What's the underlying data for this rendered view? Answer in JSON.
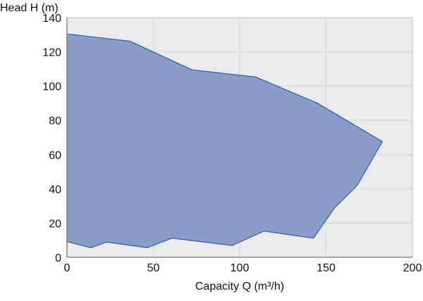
{
  "chart_data": {
    "type": "area",
    "title": "",
    "xlabel": "Capacity Q (m³/h)",
    "ylabel": "Head H (m)",
    "xlim": [
      0,
      200
    ],
    "ylim": [
      0,
      140
    ],
    "xticks": [
      0,
      50,
      100,
      150,
      200
    ],
    "yticks": [
      0,
      20,
      40,
      60,
      80,
      100,
      120,
      140
    ],
    "grid": true,
    "colors": {
      "fill": "#8a9cc8",
      "stroke": "#2f5aa8",
      "plot_bg": "#ebebeb",
      "grid": "#d6d6d6"
    },
    "polygon": [
      [
        0,
        130.5
      ],
      [
        36.5,
        126.2
      ],
      [
        72.4,
        109.5
      ],
      [
        109.3,
        105.3
      ],
      [
        145,
        90
      ],
      [
        182.6,
        67.6
      ],
      [
        168,
        42
      ],
      [
        155,
        29
      ],
      [
        142.7,
        11.2
      ],
      [
        114,
        15.3
      ],
      [
        95.6,
        6.9
      ],
      [
        60.8,
        11.2
      ],
      [
        46.5,
        5.6
      ],
      [
        22.8,
        8.9
      ],
      [
        14,
        5.6
      ],
      [
        0,
        9.2
      ]
    ]
  }
}
